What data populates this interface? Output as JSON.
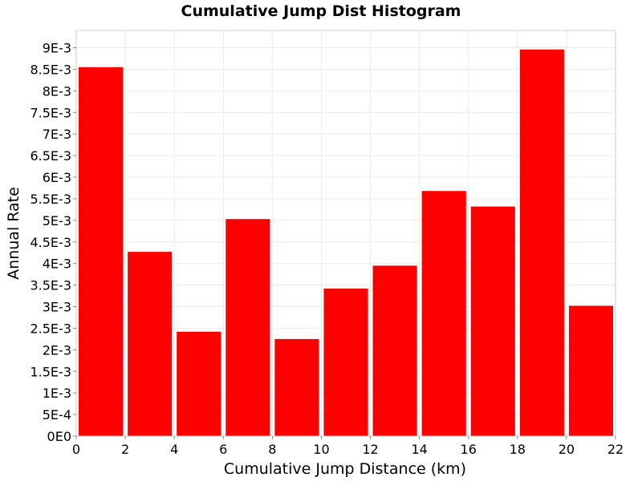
{
  "chart_data": {
    "type": "bar",
    "title": "Cumulative Jump Dist Histogram",
    "xlabel": "Cumulative Jump Distance (km)",
    "ylabel": "Annual Rate",
    "xlim": [
      0,
      22
    ],
    "ylim": [
      0,
      0.0094
    ],
    "grid": true,
    "bar_color": "#ff0000",
    "bins": [
      {
        "x0": 0,
        "x1": 2,
        "value": 0.00855
      },
      {
        "x0": 2,
        "x1": 4,
        "value": 0.00427
      },
      {
        "x0": 4,
        "x1": 6,
        "value": 0.00242
      },
      {
        "x0": 6,
        "x1": 8,
        "value": 0.00503
      },
      {
        "x0": 8,
        "x1": 10,
        "value": 0.00225
      },
      {
        "x0": 10,
        "x1": 12,
        "value": 0.00342
      },
      {
        "x0": 12,
        "x1": 14,
        "value": 0.00395
      },
      {
        "x0": 14,
        "x1": 16,
        "value": 0.00568
      },
      {
        "x0": 16,
        "x1": 18,
        "value": 0.00532
      },
      {
        "x0": 18,
        "x1": 20,
        "value": 0.00896
      },
      {
        "x0": 20,
        "x1": 22,
        "value": 0.00302
      }
    ],
    "x_ticks": [
      {
        "value": 0,
        "label": "0"
      },
      {
        "value": 2,
        "label": "2"
      },
      {
        "value": 4,
        "label": "4"
      },
      {
        "value": 6,
        "label": "6"
      },
      {
        "value": 8,
        "label": "8"
      },
      {
        "value": 10,
        "label": "10"
      },
      {
        "value": 12,
        "label": "12"
      },
      {
        "value": 14,
        "label": "14"
      },
      {
        "value": 16,
        "label": "16"
      },
      {
        "value": 18,
        "label": "18"
      },
      {
        "value": 20,
        "label": "20"
      },
      {
        "value": 22,
        "label": "22"
      }
    ],
    "y_ticks": [
      {
        "value": 0,
        "label": "0E0"
      },
      {
        "value": 0.0005,
        "label": "5E-4"
      },
      {
        "value": 0.001,
        "label": "1E-3"
      },
      {
        "value": 0.0015,
        "label": "1.5E-3"
      },
      {
        "value": 0.002,
        "label": "2E-3"
      },
      {
        "value": 0.0025,
        "label": "2.5E-3"
      },
      {
        "value": 0.003,
        "label": "3E-3"
      },
      {
        "value": 0.0035,
        "label": "3.5E-3"
      },
      {
        "value": 0.004,
        "label": "4E-3"
      },
      {
        "value": 0.0045,
        "label": "4.5E-3"
      },
      {
        "value": 0.005,
        "label": "5E-3"
      },
      {
        "value": 0.0055,
        "label": "5.5E-3"
      },
      {
        "value": 0.006,
        "label": "6E-3"
      },
      {
        "value": 0.0065,
        "label": "6.5E-3"
      },
      {
        "value": 0.007,
        "label": "7E-3"
      },
      {
        "value": 0.0075,
        "label": "7.5E-3"
      },
      {
        "value": 0.008,
        "label": "8E-3"
      },
      {
        "value": 0.0085,
        "label": "8.5E-3"
      },
      {
        "value": 0.009,
        "label": "9E-3"
      }
    ]
  }
}
